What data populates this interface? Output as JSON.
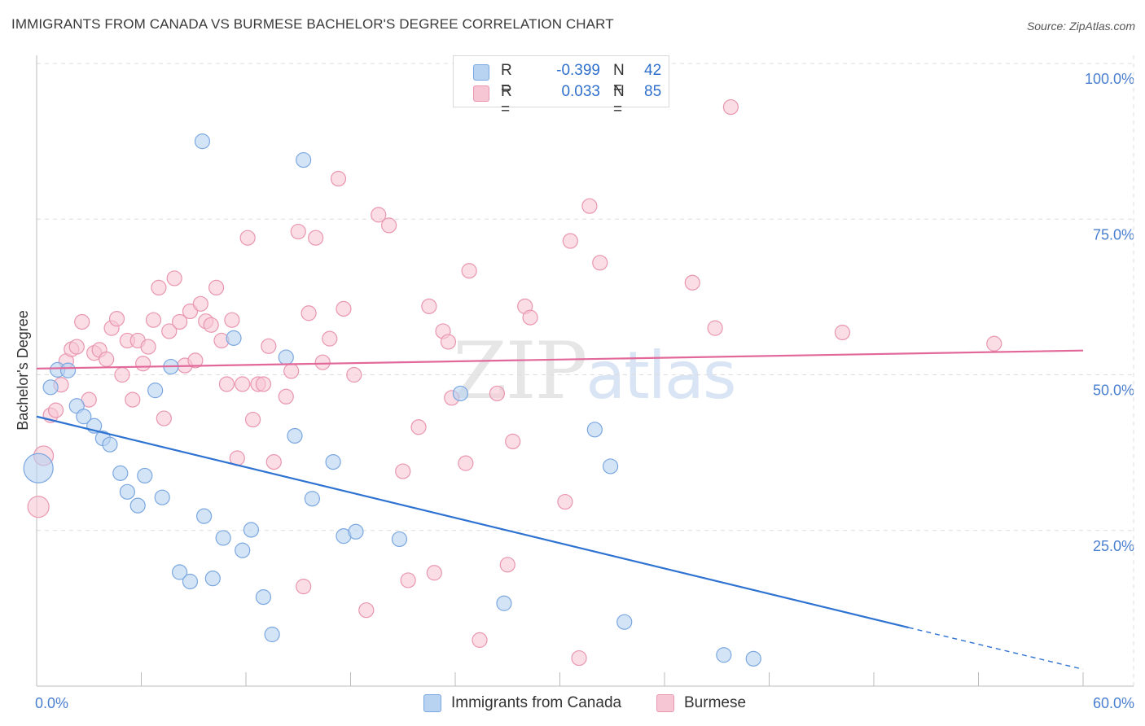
{
  "title": "IMMIGRANTS FROM CANADA VS BURMESE BACHELOR'S DEGREE CORRELATION CHART",
  "source": "Source: ZipAtlas.com",
  "watermark": {
    "zip": "ZIP",
    "atlas": "atlas"
  },
  "legend": {
    "rows": [
      {
        "r_label": "R =",
        "r_value": "-0.399",
        "n_label": "N =",
        "n_value": "42"
      },
      {
        "r_label": "R =",
        "r_value": "0.033",
        "n_label": "N =",
        "n_value": "85"
      }
    ]
  },
  "bottom_legend": [
    "Immigrants from Canada",
    "Burmese"
  ],
  "colors": {
    "blue_fill": "#b8d2f2",
    "blue_stroke": "#7ba7e0",
    "blue_line": "#2e72d2",
    "pink_fill": "#f7c6d4",
    "pink_stroke": "#e996b0",
    "pink_line": "#e2689a",
    "tick_text": "#4a7fcf",
    "grid": "#dddddd"
  },
  "chart_data": {
    "type": "scatter",
    "title": "IMMIGRANTS FROM CANADA VS BURMESE BACHELOR'S DEGREE CORRELATION CHART",
    "xlabel": "",
    "ylabel": "Bachelor's Degree",
    "xlim": [
      0,
      60
    ],
    "ylim": [
      0,
      100
    ],
    "x_tick_labels": [
      "0.0%",
      "60.0%"
    ],
    "y_ticks": [
      25,
      50,
      75,
      100
    ],
    "y_tick_labels": [
      "25.0%",
      "50.0%",
      "75.0%",
      "100.0%"
    ],
    "series": [
      {
        "name": "Immigrants from Canada",
        "color": "blue",
        "points": [
          [
            0.1,
            35.0,
            18
          ],
          [
            0.8,
            48,
            9
          ],
          [
            1.2,
            50.8,
            9
          ],
          [
            1.8,
            50.7,
            9
          ],
          [
            2.3,
            45,
            9
          ],
          [
            2.7,
            43.3,
            9
          ],
          [
            3.3,
            41.8,
            9
          ],
          [
            3.8,
            39.8,
            9
          ],
          [
            4.2,
            38.8,
            9
          ],
          [
            4.8,
            34.2,
            9
          ],
          [
            5.2,
            31.2,
            9
          ],
          [
            5.8,
            29.0,
            9
          ],
          [
            6.2,
            33.8,
            9
          ],
          [
            6.8,
            47.5,
            9
          ],
          [
            7.2,
            30.3,
            9
          ],
          [
            7.7,
            51.3,
            9
          ],
          [
            8.2,
            18.3,
            9
          ],
          [
            8.8,
            16.8,
            9
          ],
          [
            9.5,
            87.5,
            9
          ],
          [
            9.6,
            27.3,
            9
          ],
          [
            10.1,
            17.3,
            9
          ],
          [
            10.7,
            23.8,
            9
          ],
          [
            11.3,
            55.9,
            9
          ],
          [
            11.8,
            21.8,
            9
          ],
          [
            12.3,
            25.1,
            9
          ],
          [
            13.0,
            14.3,
            9
          ],
          [
            13.5,
            8.3,
            9
          ],
          [
            14.3,
            52.8,
            9
          ],
          [
            14.8,
            40.2,
            9
          ],
          [
            15.3,
            84.5,
            9
          ],
          [
            15.8,
            30.1,
            9
          ],
          [
            17.0,
            36.0,
            9
          ],
          [
            17.6,
            24.1,
            9
          ],
          [
            18.3,
            24.8,
            9
          ],
          [
            20.8,
            23.6,
            9
          ],
          [
            24.3,
            47.0,
            9
          ],
          [
            26.8,
            13.3,
            9
          ],
          [
            32.0,
            41.2,
            9
          ],
          [
            32.9,
            35.3,
            9
          ],
          [
            33.7,
            10.3,
            9
          ],
          [
            39.4,
            5.0,
            9
          ],
          [
            41.1,
            4.4,
            9
          ]
        ]
      },
      {
        "name": "Burmese",
        "color": "pink",
        "points": [
          [
            0.1,
            28.8,
            13
          ],
          [
            0.4,
            37.0,
            12
          ],
          [
            0.8,
            43.5,
            9
          ],
          [
            1.1,
            44.3,
            9
          ],
          [
            1.4,
            48.4,
            9
          ],
          [
            1.7,
            52.2,
            9
          ],
          [
            2.0,
            54.1,
            9
          ],
          [
            2.3,
            54.5,
            9
          ],
          [
            2.6,
            58.5,
            9
          ],
          [
            3.0,
            46.0,
            9
          ],
          [
            3.3,
            53.5,
            9
          ],
          [
            3.6,
            54.0,
            9
          ],
          [
            4.0,
            52.5,
            9
          ],
          [
            4.3,
            57.5,
            9
          ],
          [
            4.6,
            59.0,
            9
          ],
          [
            4.9,
            50.0,
            9
          ],
          [
            5.2,
            55.5,
            9
          ],
          [
            5.5,
            46.0,
            9
          ],
          [
            5.8,
            55.5,
            9
          ],
          [
            6.1,
            51.8,
            9
          ],
          [
            6.4,
            54.5,
            9
          ],
          [
            6.7,
            58.8,
            9
          ],
          [
            7.0,
            64.0,
            9
          ],
          [
            7.3,
            43.0,
            9
          ],
          [
            7.6,
            57.0,
            9
          ],
          [
            7.9,
            65.5,
            9
          ],
          [
            8.2,
            58.5,
            9
          ],
          [
            8.5,
            51.5,
            9
          ],
          [
            8.8,
            60.2,
            9
          ],
          [
            9.1,
            52.3,
            9
          ],
          [
            9.4,
            61.4,
            9
          ],
          [
            9.7,
            58.6,
            9
          ],
          [
            10.0,
            58.0,
            9
          ],
          [
            10.3,
            64.0,
            9
          ],
          [
            10.6,
            55.5,
            9
          ],
          [
            10.9,
            48.5,
            9
          ],
          [
            11.2,
            58.8,
            9
          ],
          [
            11.5,
            36.6,
            9
          ],
          [
            11.8,
            48.5,
            9
          ],
          [
            12.1,
            72.0,
            9
          ],
          [
            12.4,
            42.8,
            9
          ],
          [
            12.7,
            48.5,
            9
          ],
          [
            13.0,
            48.5,
            9
          ],
          [
            13.3,
            54.6,
            9
          ],
          [
            13.6,
            36.0,
            9
          ],
          [
            14.3,
            46.5,
            9
          ],
          [
            14.6,
            50.6,
            9
          ],
          [
            15.0,
            73.0,
            9
          ],
          [
            15.3,
            16.0,
            9
          ],
          [
            15.6,
            59.9,
            9
          ],
          [
            16.0,
            72.0,
            9
          ],
          [
            16.4,
            52.0,
            9
          ],
          [
            16.8,
            55.8,
            9
          ],
          [
            17.3,
            81.5,
            9
          ],
          [
            17.6,
            60.6,
            9
          ],
          [
            18.2,
            50.0,
            9
          ],
          [
            18.9,
            12.2,
            9
          ],
          [
            19.6,
            75.7,
            9
          ],
          [
            20.2,
            74.0,
            9
          ],
          [
            21.0,
            34.5,
            9
          ],
          [
            21.3,
            17.0,
            9
          ],
          [
            21.9,
            41.6,
            9
          ],
          [
            22.5,
            61.0,
            9
          ],
          [
            22.8,
            18.2,
            9
          ],
          [
            23.3,
            57.0,
            9
          ],
          [
            23.6,
            55.3,
            9
          ],
          [
            23.8,
            46.3,
            9
          ],
          [
            24.6,
            35.8,
            9
          ],
          [
            24.8,
            66.7,
            9
          ],
          [
            25.4,
            7.4,
            9
          ],
          [
            26.4,
            47.0,
            9
          ],
          [
            27.0,
            19.5,
            9
          ],
          [
            27.3,
            39.3,
            9
          ],
          [
            28.0,
            61.0,
            9
          ],
          [
            28.3,
            59.2,
            9
          ],
          [
            30.3,
            29.6,
            9
          ],
          [
            30.6,
            71.5,
            9
          ],
          [
            31.1,
            4.5,
            9
          ],
          [
            31.7,
            77.1,
            9
          ],
          [
            32.3,
            68.0,
            9
          ],
          [
            37.6,
            64.8,
            9
          ],
          [
            38.9,
            57.5,
            9
          ],
          [
            39.8,
            93.0,
            9
          ],
          [
            46.2,
            56.8,
            9
          ],
          [
            54.9,
            55.0,
            9
          ]
        ]
      }
    ],
    "trendlines": [
      {
        "series": "Immigrants from Canada",
        "x": [
          0,
          50.0
        ],
        "y": [
          43.3,
          9.4
        ],
        "dashed_to": [
          60,
          2.7
        ]
      },
      {
        "series": "Burmese",
        "x": [
          0,
          60
        ],
        "y": [
          51.0,
          53.9
        ]
      }
    ]
  }
}
